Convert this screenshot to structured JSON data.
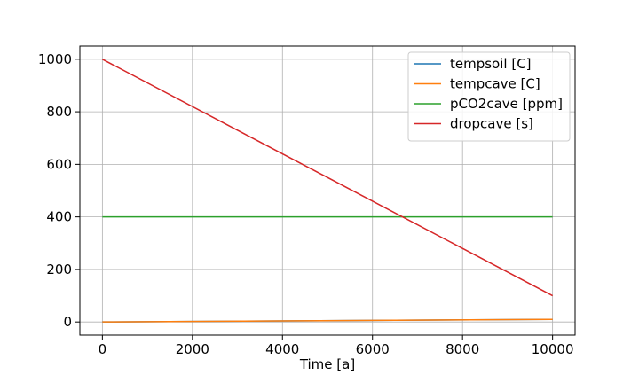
{
  "chart_data": {
    "type": "line",
    "xlabel": "Time [a]",
    "ylabel": "",
    "xlim": [
      -500,
      10500
    ],
    "ylim": [
      -50,
      1050
    ],
    "xticks": [
      0,
      2000,
      4000,
      6000,
      8000,
      10000
    ],
    "yticks": [
      0,
      200,
      400,
      600,
      800,
      1000
    ],
    "grid": true,
    "legend_position": "top-right",
    "series": [
      {
        "name": "tempsoil [C]",
        "color": "#1f77b4",
        "x": [
          0,
          10000
        ],
        "y": [
          0,
          10
        ]
      },
      {
        "name": "tempcave [C]",
        "color": "#ff7f0e",
        "x": [
          0,
          10000
        ],
        "y": [
          0,
          10
        ]
      },
      {
        "name": "pCO2cave [ppm]",
        "color": "#2ca02c",
        "x": [
          0,
          10000
        ],
        "y": [
          400,
          400
        ]
      },
      {
        "name": "dropcave [s]",
        "color": "#d62728",
        "x": [
          0,
          10000
        ],
        "y": [
          1000,
          100
        ]
      }
    ]
  }
}
